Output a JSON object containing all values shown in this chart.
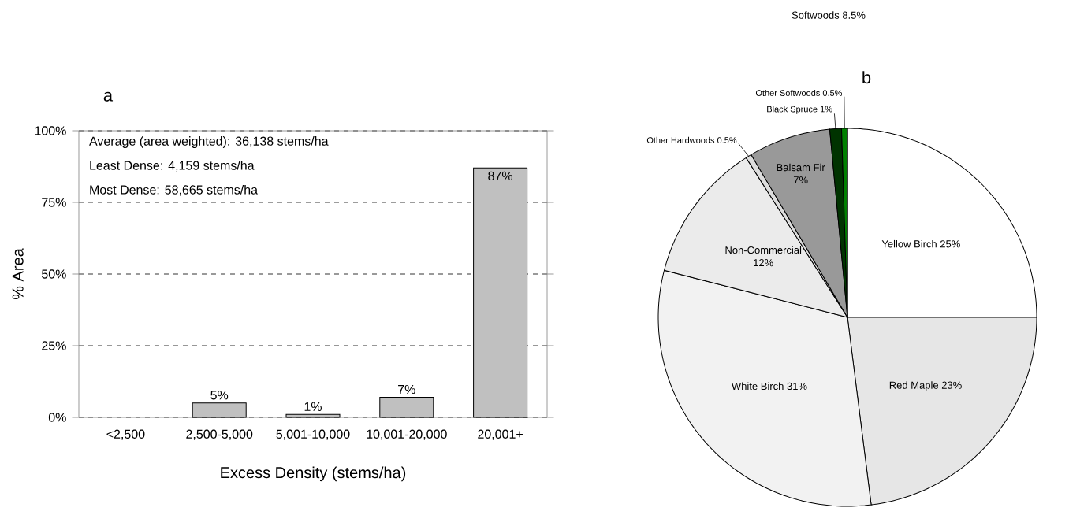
{
  "chart_data": [
    {
      "type": "bar",
      "title": "a",
      "xlabel": "Excess Density (stems/ha)",
      "ylabel": "% Area",
      "categories": [
        "<2,500",
        "2,500-5,000",
        "5,001-10,000",
        "10,001-20,000",
        "20,001+"
      ],
      "values": [
        0,
        5,
        1,
        7,
        87
      ],
      "value_labels": [
        null,
        "5%",
        "1%",
        "7%",
        "87%"
      ],
      "color": "#c0c0c0",
      "ylim": [
        0,
        100
      ],
      "yticks": [
        {
          "value": 0,
          "label": "0%"
        },
        {
          "value": 25,
          "label": "25%"
        },
        {
          "value": 50,
          "label": "50%"
        },
        {
          "value": 75,
          "label": "75%"
        },
        {
          "value": 100,
          "label": "100%"
        }
      ],
      "grid": "y",
      "annotations": [
        "Average (area weighted): 36,138 stems/ha",
        "Least Dense: 4,159 stems/ha",
        "Most Dense: 58,665 stems/ha"
      ]
    },
    {
      "type": "pie",
      "title": "b",
      "categories": [
        "Yellow Birch",
        "Red Maple",
        "White Birch",
        "Non-Commercial",
        "Other Hardwoods",
        "Balsam Fir",
        "Black Spruce",
        "Other Softwoods"
      ],
      "values": [
        25,
        23,
        31,
        12,
        0.5,
        7,
        1,
        0.5
      ],
      "value_labels": [
        "25%",
        "23%",
        "31%",
        "12%",
        "0.5%",
        "7%",
        "1%",
        "0.5%"
      ],
      "colors": [
        "#ffffff",
        "#e6e6e6",
        "#f2f2f2",
        "#ebebeb",
        "#dddddd",
        "#999999",
        "#003300",
        "#008000"
      ],
      "annotations": [
        "Softwoods 8.5%"
      ]
    }
  ]
}
